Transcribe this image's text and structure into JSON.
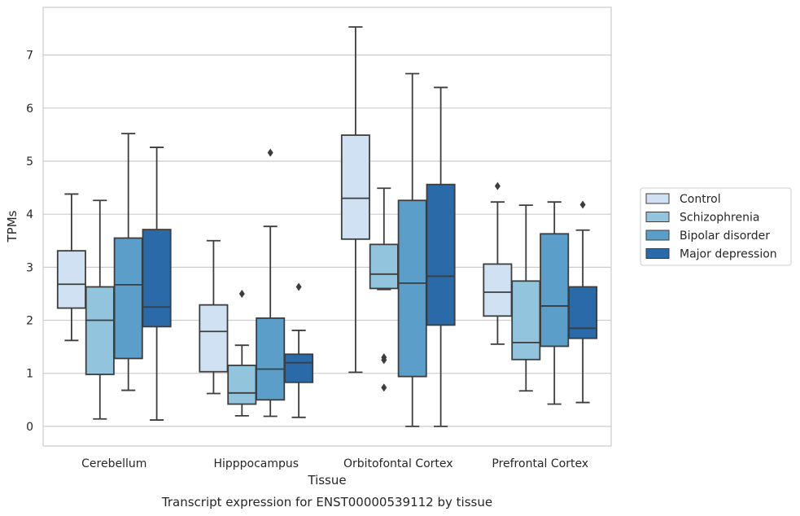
{
  "chart_data": {
    "type": "box",
    "title": "",
    "caption": "Transcript expression for ENST00000539112 by tissue",
    "xlabel": "Tissue",
    "ylabel": "TPMs",
    "ylim": [
      -0.37,
      7.9
    ],
    "yticks": [
      0,
      1,
      2,
      3,
      4,
      5,
      6,
      7
    ],
    "grid": "horizontal",
    "legend_position": "right",
    "categories": [
      "Cerebellum",
      "Hipppocampus",
      "Orbitofontal Cortex",
      "Prefrontal Cortex"
    ],
    "series": [
      {
        "name": "Control",
        "color": "#cfe1f2",
        "boxes": [
          {
            "whislo": 1.62,
            "q1": 2.23,
            "med": 2.68,
            "q3": 3.31,
            "whishi": 4.38,
            "fliers": []
          },
          {
            "whislo": 0.62,
            "q1": 1.03,
            "med": 1.79,
            "q3": 2.29,
            "whishi": 3.5,
            "fliers": []
          },
          {
            "whislo": 1.02,
            "q1": 3.53,
            "med": 4.3,
            "q3": 5.49,
            "whishi": 7.53,
            "fliers": []
          },
          {
            "whislo": 1.55,
            "q1": 2.08,
            "med": 2.53,
            "q3": 3.06,
            "whishi": 4.23,
            "fliers": [
              4.53
            ]
          }
        ]
      },
      {
        "name": "Schizophrenia",
        "color": "#93c4de",
        "boxes": [
          {
            "whislo": 0.14,
            "q1": 0.98,
            "med": 2.0,
            "q3": 2.63,
            "whishi": 4.26,
            "fliers": []
          },
          {
            "whislo": 0.2,
            "q1": 0.42,
            "med": 0.63,
            "q3": 1.15,
            "whishi": 1.53,
            "fliers": [
              2.5
            ]
          },
          {
            "whislo": 2.58,
            "q1": 2.6,
            "med": 2.87,
            "q3": 3.43,
            "whishi": 4.49,
            "fliers": [
              1.3,
              1.25,
              0.73
            ]
          },
          {
            "whislo": 0.67,
            "q1": 1.26,
            "med": 1.58,
            "q3": 2.74,
            "whishi": 4.17,
            "fliers": []
          }
        ]
      },
      {
        "name": "Bipolar disorder",
        "color": "#5a9ec9",
        "boxes": [
          {
            "whislo": 0.68,
            "q1": 1.28,
            "med": 2.67,
            "q3": 3.55,
            "whishi": 5.52,
            "fliers": []
          },
          {
            "whislo": 0.19,
            "q1": 0.5,
            "med": 1.08,
            "q3": 2.04,
            "whishi": 3.77,
            "fliers": [
              5.16
            ]
          },
          {
            "whislo": 0.0,
            "q1": 0.94,
            "med": 2.7,
            "q3": 4.26,
            "whishi": 6.65,
            "fliers": []
          },
          {
            "whislo": 0.42,
            "q1": 1.51,
            "med": 2.27,
            "q3": 3.63,
            "whishi": 4.23,
            "fliers": []
          }
        ]
      },
      {
        "name": "Major depression",
        "color": "#2a6aa8",
        "boxes": [
          {
            "whislo": 0.12,
            "q1": 1.88,
            "med": 2.25,
            "q3": 3.71,
            "whishi": 5.26,
            "fliers": []
          },
          {
            "whislo": 0.17,
            "q1": 0.83,
            "med": 1.2,
            "q3": 1.36,
            "whishi": 1.81,
            "fliers": [
              2.63
            ]
          },
          {
            "whislo": 0.0,
            "q1": 1.91,
            "med": 2.83,
            "q3": 4.56,
            "whishi": 6.39,
            "fliers": []
          },
          {
            "whislo": 0.45,
            "q1": 1.66,
            "med": 1.85,
            "q3": 2.63,
            "whishi": 3.7,
            "fliers": [
              4.18
            ]
          }
        ]
      }
    ]
  },
  "colors": {
    "frame": "#cccccc",
    "grid": "#cccccc",
    "line": "#3d3d3d",
    "text": "#262626"
  }
}
